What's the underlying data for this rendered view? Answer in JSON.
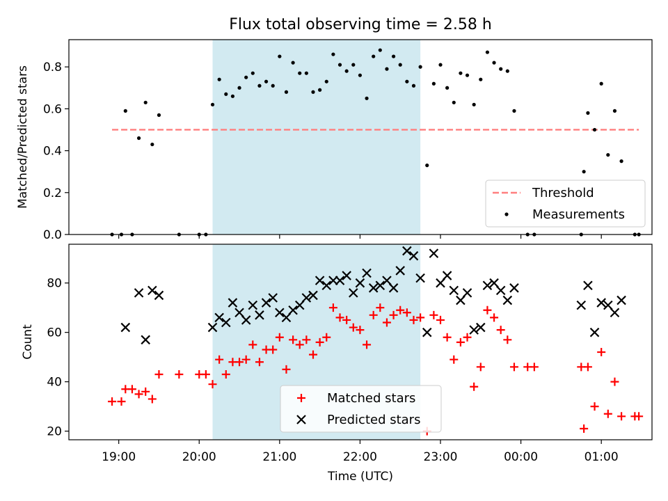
{
  "title": "Flux total observing time = 2.58 h",
  "colors": {
    "threshold": "#ff7f7f",
    "measurement": "#000000",
    "matched": "#ff0000",
    "predicted": "#000000",
    "shade": "#add8e6"
  },
  "chart_data": [
    {
      "type": "scatter",
      "ylabel": "Matched/Predicted stars",
      "ylim": [
        0,
        0.93
      ],
      "xlim_hours": [
        18.38,
        25.63
      ],
      "yticks": [
        0.0,
        0.2,
        0.4,
        0.6,
        0.8
      ],
      "ytick_labels": [
        "0.0",
        "0.2",
        "0.4",
        "0.6",
        "0.8"
      ],
      "shaded_span": [
        "20:10",
        "22:45"
      ],
      "threshold": {
        "name": "Threshold",
        "value": 0.5,
        "x_range": [
          "18:55",
          "25:28"
        ]
      },
      "legend": {
        "position": "lower-right",
        "entries": [
          "Threshold",
          "Measurements"
        ]
      },
      "series": [
        {
          "name": "Measurements",
          "points": [
            [
              "18:55",
              0.0
            ],
            [
              "19:02",
              0.0
            ],
            [
              "19:05",
              0.59
            ],
            [
              "19:10",
              0.0
            ],
            [
              "19:15",
              0.46
            ],
            [
              "19:20",
              0.63
            ],
            [
              "19:25",
              0.43
            ],
            [
              "19:30",
              0.57
            ],
            [
              "19:45",
              0.0
            ],
            [
              "20:00",
              0.0
            ],
            [
              "20:05",
              0.0
            ],
            [
              "20:10",
              0.62
            ],
            [
              "20:15",
              0.74
            ],
            [
              "20:20",
              0.67
            ],
            [
              "20:25",
              0.66
            ],
            [
              "20:30",
              0.7
            ],
            [
              "20:35",
              0.75
            ],
            [
              "20:40",
              0.77
            ],
            [
              "20:45",
              0.71
            ],
            [
              "20:50",
              0.73
            ],
            [
              "20:55",
              0.71
            ],
            [
              "21:00",
              0.85
            ],
            [
              "21:05",
              0.68
            ],
            [
              "21:10",
              0.82
            ],
            [
              "21:15",
              0.77
            ],
            [
              "21:20",
              0.77
            ],
            [
              "21:25",
              0.68
            ],
            [
              "21:30",
              0.69
            ],
            [
              "21:35",
              0.73
            ],
            [
              "21:40",
              0.86
            ],
            [
              "21:45",
              0.81
            ],
            [
              "21:50",
              0.78
            ],
            [
              "21:55",
              0.81
            ],
            [
              "22:00",
              0.76
            ],
            [
              "22:05",
              0.65
            ],
            [
              "22:10",
              0.85
            ],
            [
              "22:15",
              0.88
            ],
            [
              "22:20",
              0.79
            ],
            [
              "22:25",
              0.85
            ],
            [
              "22:30",
              0.81
            ],
            [
              "22:35",
              0.73
            ],
            [
              "22:40",
              0.71
            ],
            [
              "22:45",
              0.8
            ],
            [
              "22:50",
              0.33
            ],
            [
              "22:55",
              0.72
            ],
            [
              "23:00",
              0.81
            ],
            [
              "23:05",
              0.7
            ],
            [
              "23:10",
              0.63
            ],
            [
              "23:15",
              0.77
            ],
            [
              "23:20",
              0.76
            ],
            [
              "23:25",
              0.62
            ],
            [
              "23:30",
              0.74
            ],
            [
              "23:35",
              0.87
            ],
            [
              "23:40",
              0.82
            ],
            [
              "23:45",
              0.79
            ],
            [
              "23:50",
              0.78
            ],
            [
              "23:55",
              0.59
            ],
            [
              "24:05",
              0.0
            ],
            [
              "24:10",
              0.0
            ],
            [
              "24:45",
              0.0
            ],
            [
              "24:47",
              0.3
            ],
            [
              "24:50",
              0.58
            ],
            [
              "24:55",
              0.5
            ],
            [
              "25:00",
              0.72
            ],
            [
              "25:05",
              0.38
            ],
            [
              "25:10",
              0.59
            ],
            [
              "25:15",
              0.35
            ],
            [
              "25:25",
              0.0
            ],
            [
              "25:28",
              0.0
            ]
          ]
        }
      ]
    },
    {
      "type": "scatter",
      "xlabel": "Time (UTC)",
      "ylabel": "Count",
      "ylim": [
        16.5,
        95.7
      ],
      "xlim_hours": [
        18.38,
        25.63
      ],
      "yticks": [
        20,
        40,
        60,
        80
      ],
      "ytick_labels": [
        "20",
        "40",
        "60",
        "80"
      ],
      "xticks_hours": [
        19,
        20,
        21,
        22,
        23,
        24,
        25
      ],
      "xtick_labels": [
        "19:00",
        "20:00",
        "21:00",
        "22:00",
        "23:00",
        "00:00",
        "01:00"
      ],
      "shaded_span": [
        "20:10",
        "22:45"
      ],
      "legend": {
        "position": "lower-center",
        "entries": [
          "Matched stars",
          "Predicted stars"
        ]
      },
      "series": [
        {
          "name": "Matched stars",
          "marker": "plus",
          "points": [
            [
              "18:55",
              32
            ],
            [
              "19:02",
              32
            ],
            [
              "19:05",
              37
            ],
            [
              "19:10",
              37
            ],
            [
              "19:15",
              35
            ],
            [
              "19:20",
              36
            ],
            [
              "19:25",
              33
            ],
            [
              "19:30",
              43
            ],
            [
              "19:45",
              43
            ],
            [
              "20:00",
              43
            ],
            [
              "20:05",
              43
            ],
            [
              "20:10",
              39
            ],
            [
              "20:15",
              49
            ],
            [
              "20:20",
              43
            ],
            [
              "20:25",
              48
            ],
            [
              "20:30",
              48
            ],
            [
              "20:35",
              49
            ],
            [
              "20:40",
              55
            ],
            [
              "20:45",
              48
            ],
            [
              "20:50",
              53
            ],
            [
              "20:55",
              53
            ],
            [
              "21:00",
              58
            ],
            [
              "21:05",
              45
            ],
            [
              "21:10",
              57
            ],
            [
              "21:15",
              55
            ],
            [
              "21:20",
              57
            ],
            [
              "21:25",
              51
            ],
            [
              "21:30",
              56
            ],
            [
              "21:35",
              58
            ],
            [
              "21:40",
              70
            ],
            [
              "21:45",
              66
            ],
            [
              "21:50",
              65
            ],
            [
              "21:55",
              62
            ],
            [
              "22:00",
              61
            ],
            [
              "22:05",
              55
            ],
            [
              "22:10",
              67
            ],
            [
              "22:15",
              70
            ],
            [
              "22:20",
              64
            ],
            [
              "22:25",
              67
            ],
            [
              "22:30",
              69
            ],
            [
              "22:35",
              68
            ],
            [
              "22:40",
              65
            ],
            [
              "22:45",
              66
            ],
            [
              "22:50",
              20
            ],
            [
              "22:55",
              67
            ],
            [
              "23:00",
              65
            ],
            [
              "23:05",
              58
            ],
            [
              "23:10",
              49
            ],
            [
              "23:15",
              56
            ],
            [
              "23:20",
              58
            ],
            [
              "23:25",
              38
            ],
            [
              "23:30",
              46
            ],
            [
              "23:35",
              69
            ],
            [
              "23:40",
              66
            ],
            [
              "23:45",
              61
            ],
            [
              "23:50",
              57
            ],
            [
              "23:55",
              46
            ],
            [
              "24:05",
              46
            ],
            [
              "24:10",
              46
            ],
            [
              "24:45",
              46
            ],
            [
              "24:47",
              21
            ],
            [
              "24:50",
              46
            ],
            [
              "24:55",
              30
            ],
            [
              "25:00",
              52
            ],
            [
              "25:05",
              27
            ],
            [
              "25:10",
              40
            ],
            [
              "25:15",
              26
            ],
            [
              "25:25",
              26
            ],
            [
              "25:28",
              26
            ]
          ]
        },
        {
          "name": "Predicted stars",
          "marker": "x",
          "points": [
            [
              "19:05",
              62
            ],
            [
              "19:15",
              76
            ],
            [
              "19:20",
              57
            ],
            [
              "19:25",
              77
            ],
            [
              "19:30",
              75
            ],
            [
              "20:10",
              62
            ],
            [
              "20:15",
              66
            ],
            [
              "20:20",
              64
            ],
            [
              "20:25",
              72
            ],
            [
              "20:30",
              68
            ],
            [
              "20:35",
              65
            ],
            [
              "20:40",
              71
            ],
            [
              "20:45",
              67
            ],
            [
              "20:50",
              72
            ],
            [
              "20:55",
              74
            ],
            [
              "21:00",
              68
            ],
            [
              "21:05",
              66
            ],
            [
              "21:10",
              69
            ],
            [
              "21:15",
              71
            ],
            [
              "21:20",
              74
            ],
            [
              "21:25",
              75
            ],
            [
              "21:30",
              81
            ],
            [
              "21:35",
              79
            ],
            [
              "21:40",
              81
            ],
            [
              "21:45",
              81
            ],
            [
              "21:50",
              83
            ],
            [
              "21:55",
              76
            ],
            [
              "22:00",
              80
            ],
            [
              "22:05",
              84
            ],
            [
              "22:10",
              78
            ],
            [
              "22:15",
              79
            ],
            [
              "22:20",
              81
            ],
            [
              "22:25",
              78
            ],
            [
              "22:30",
              85
            ],
            [
              "22:35",
              93
            ],
            [
              "22:40",
              91
            ],
            [
              "22:45",
              82
            ],
            [
              "22:50",
              60
            ],
            [
              "22:55",
              92
            ],
            [
              "23:00",
              80
            ],
            [
              "23:05",
              83
            ],
            [
              "23:10",
              77
            ],
            [
              "23:15",
              73
            ],
            [
              "23:20",
              76
            ],
            [
              "23:25",
              61
            ],
            [
              "23:30",
              62
            ],
            [
              "23:35",
              79
            ],
            [
              "23:40",
              80
            ],
            [
              "23:45",
              77
            ],
            [
              "23:50",
              73
            ],
            [
              "23:55",
              78
            ],
            [
              "24:45",
              71
            ],
            [
              "24:50",
              79
            ],
            [
              "24:55",
              60
            ],
            [
              "25:00",
              72
            ],
            [
              "25:05",
              71
            ],
            [
              "25:10",
              68
            ],
            [
              "25:15",
              73
            ]
          ]
        }
      ]
    }
  ]
}
